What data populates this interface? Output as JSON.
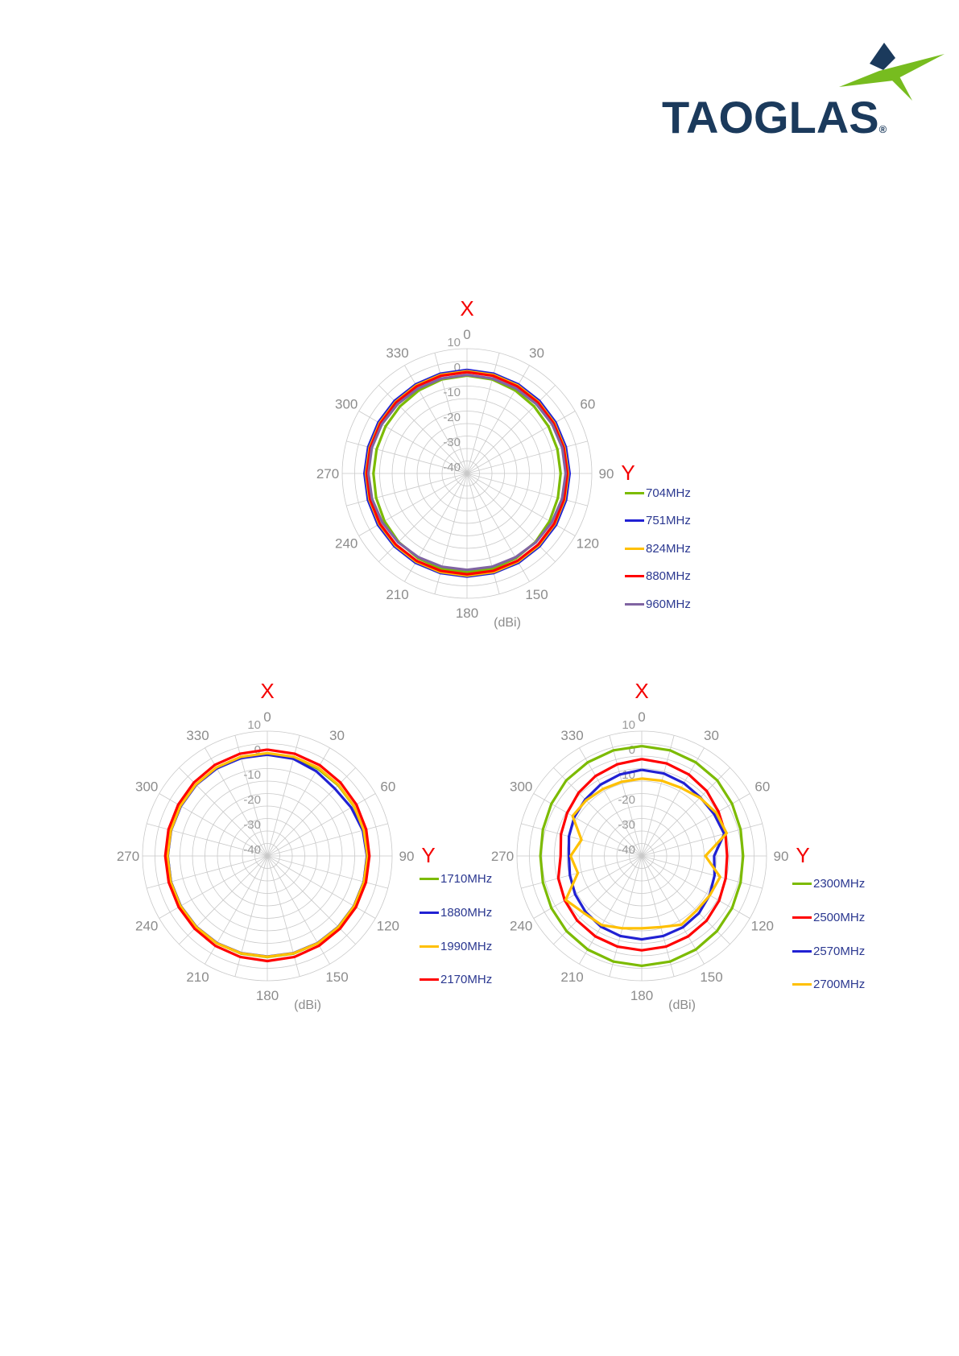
{
  "logo": {
    "wordmark": "TAOGLAS",
    "registered": "®",
    "navy": "#1b3a5c",
    "green": "#77bc1f"
  },
  "colors": {
    "axis_title_red": "#f40000",
    "angle_label_gray": "#8c8c8c",
    "radial_label_gray": "#9a9a9a",
    "grid_gray": "#c9c9c9",
    "legend_text_navy": "#2b3890"
  },
  "chart_data": [
    {
      "type": "line",
      "projection": "polar",
      "title_top": "X",
      "title_right": "Y",
      "unit_label": "(dBi)",
      "angle_step_deg": 15,
      "angle_tick_labels": [
        "0",
        "30",
        "60",
        "90",
        "120",
        "150",
        "180",
        "210",
        "240",
        "270",
        "300",
        "330"
      ],
      "radial_ticks": [
        10,
        0,
        -10,
        -20,
        -30,
        -40
      ],
      "radial_range": [
        -40,
        10
      ],
      "grid_step_db": 5,
      "legend_position": "right",
      "angles_deg": [
        0,
        15,
        30,
        45,
        60,
        75,
        90,
        105,
        120,
        135,
        150,
        165,
        180,
        195,
        210,
        225,
        240,
        255,
        270,
        285,
        300,
        315,
        330,
        345
      ],
      "series": [
        {
          "name": "704MHz",
          "color": "#7cbb00",
          "values": [
            -0.8,
            -1.0,
            -1.5,
            -2.0,
            -2.3,
            -2.5,
            -2.5,
            -2.3,
            -1.8,
            -1.2,
            -0.8,
            -0.5,
            -0.4,
            -0.5,
            -0.8,
            -1.2,
            -1.8,
            -2.3,
            -2.5,
            -2.5,
            -2.3,
            -2.0,
            -1.5,
            -1.0
          ]
        },
        {
          "name": "751MHz",
          "color": "#2121d3",
          "values": [
            1.5,
            1.4,
            1.2,
            1.1,
            1.0,
            1.0,
            1.1,
            1.1,
            1.2,
            1.2,
            1.3,
            1.3,
            1.3,
            1.3,
            1.3,
            1.2,
            1.2,
            1.1,
            1.1,
            1.0,
            1.0,
            1.1,
            1.2,
            1.4
          ]
        },
        {
          "name": "824MHz",
          "color": "#ffc000",
          "values": [
            1.0,
            0.9,
            0.7,
            0.5,
            0.4,
            0.4,
            0.5,
            0.5,
            0.6,
            0.7,
            0.8,
            0.9,
            0.9,
            0.9,
            0.8,
            0.7,
            0.6,
            0.5,
            0.5,
            0.4,
            0.4,
            0.5,
            0.7,
            0.9
          ]
        },
        {
          "name": "880MHz",
          "color": "#ff0000",
          "values": [
            0.6,
            0.5,
            0.3,
            0.2,
            0.1,
            0.1,
            0.2,
            0.2,
            0.3,
            0.3,
            0.4,
            0.4,
            0.4,
            0.4,
            0.4,
            0.3,
            0.3,
            0.2,
            0.2,
            0.1,
            0.1,
            0.2,
            0.3,
            0.5
          ]
        },
        {
          "name": "960MHz",
          "color": "#8064a2",
          "values": [
            -0.5,
            -0.6,
            -0.7,
            -0.7,
            -0.6,
            -0.5,
            -0.5,
            -0.6,
            -0.8,
            -1.0,
            -1.2,
            -1.3,
            -1.4,
            -1.3,
            -1.2,
            -1.0,
            -0.8,
            -0.6,
            -0.5,
            -0.5,
            -0.6,
            -0.7,
            -0.7,
            -0.6
          ]
        }
      ]
    },
    {
      "type": "line",
      "projection": "polar",
      "title_top": "X",
      "title_right": "Y",
      "unit_label": "(dBi)",
      "angle_step_deg": 15,
      "angle_tick_labels": [
        "0",
        "30",
        "60",
        "90",
        "120",
        "150",
        "180",
        "210",
        "240",
        "270",
        "300",
        "330"
      ],
      "radial_ticks": [
        10,
        0,
        -10,
        -20,
        -30,
        -40
      ],
      "radial_range": [
        -40,
        10
      ],
      "grid_step_db": 5,
      "legend_position": "right",
      "angles_deg": [
        0,
        15,
        30,
        45,
        60,
        75,
        90,
        105,
        120,
        135,
        150,
        165,
        180,
        195,
        210,
        225,
        240,
        255,
        270,
        285,
        300,
        315,
        330,
        345
      ],
      "series": [
        {
          "name": "1710MHz",
          "color": "#7cbb00",
          "values": [
            1.0,
            0.8,
            0.4,
            0.1,
            0.0,
            -0.1,
            0.0,
            0.0,
            0.1,
            0.2,
            0.4,
            0.5,
            0.5,
            0.5,
            0.4,
            0.2,
            0.1,
            0.0,
            -0.1,
            0.0,
            0.1,
            0.4,
            0.8,
            1.0
          ]
        },
        {
          "name": "1880MHz",
          "color": "#2121d3",
          "values": [
            0.6,
            0.3,
            -0.8,
            -1.8,
            -1.2,
            -0.4,
            -0.1,
            0.0,
            0.1,
            0.2,
            0.3,
            0.3,
            0.3,
            0.3,
            0.3,
            0.2,
            0.1,
            0.0,
            -0.1,
            -0.1,
            0.0,
            0.3,
            0.5,
            0.6
          ]
        },
        {
          "name": "1990MHz",
          "color": "#ffc000",
          "values": [
            1.2,
            1.1,
            0.8,
            0.3,
            0.1,
            0.0,
            0.1,
            0.1,
            0.2,
            0.3,
            0.4,
            0.4,
            0.4,
            0.4,
            0.4,
            0.3,
            0.2,
            0.1,
            0.0,
            0.0,
            0.2,
            0.5,
            0.9,
            1.1
          ]
        },
        {
          "name": "2170MHz",
          "color": "#ff0000",
          "values": [
            2.6,
            2.4,
            2.0,
            1.5,
            1.2,
            1.0,
            0.9,
            0.9,
            1.0,
            1.2,
            1.5,
            1.9,
            2.1,
            1.9,
            1.6,
            1.2,
            1.0,
            0.9,
            0.9,
            1.0,
            1.2,
            1.6,
            2.1,
            2.4
          ]
        }
      ]
    },
    {
      "type": "line",
      "projection": "polar",
      "title_top": "X",
      "title_right": "Y",
      "unit_label": "(dBi)",
      "angle_step_deg": 15,
      "angle_tick_labels": [
        "0",
        "30",
        "60",
        "90",
        "120",
        "150",
        "180",
        "210",
        "240",
        "270",
        "300",
        "330"
      ],
      "radial_ticks": [
        10,
        0,
        -10,
        -20,
        -30,
        -40
      ],
      "radial_range": [
        -40,
        10
      ],
      "grid_step_db": 5,
      "legend_position": "right",
      "angles_deg": [
        0,
        15,
        30,
        45,
        60,
        75,
        90,
        105,
        120,
        135,
        150,
        165,
        180,
        195,
        210,
        225,
        240,
        255,
        270,
        285,
        300,
        315,
        330,
        345
      ],
      "series": [
        {
          "name": "2300MHz",
          "color": "#7cbb00",
          "values": [
            4.0,
            3.8,
            3.3,
            2.8,
            1.8,
            1.0,
            0.6,
            1.0,
            1.8,
            2.6,
            3.3,
            3.8,
            4.0,
            3.8,
            3.3,
            2.6,
            1.8,
            1.0,
            0.6,
            1.0,
            1.8,
            2.8,
            3.3,
            3.8
          ]
        },
        {
          "name": "2500MHz",
          "color": "#ff0000",
          "values": [
            -1.2,
            -1.6,
            -2.3,
            -3.2,
            -4.5,
            -5.3,
            -5.8,
            -5.2,
            -4.2,
            -3.3,
            -2.8,
            -2.4,
            -2.2,
            -2.4,
            -2.8,
            -3.4,
            -4.4,
            -5.4,
            -7.5,
            -6.5,
            -5.5,
            -4.2,
            -3.0,
            -2.0
          ]
        },
        {
          "name": "2570MHz",
          "color": "#2121d3",
          "values": [
            -5.5,
            -5.8,
            -6.3,
            -6.8,
            -6.5,
            -5.8,
            -11.0,
            -9.8,
            -8.6,
            -7.6,
            -7.0,
            -6.8,
            -6.6,
            -6.8,
            -7.3,
            -8.2,
            -9.2,
            -10.2,
            -10.8,
            -9.8,
            -8.8,
            -8.0,
            -7.0,
            -6.2
          ]
        },
        {
          "name": "2700MHz",
          "color": "#ffc000",
          "values": [
            -9.0,
            -8.8,
            -8.5,
            -7.0,
            -5.5,
            -4.8,
            -14.5,
            -7.5,
            -8.5,
            -9.0,
            -8.2,
            -10.5,
            -11.0,
            -10.0,
            -8.0,
            -7.5,
            -4.8,
            -13.5,
            -11.5,
            -15.0,
            -8.0,
            -8.5,
            -9.0,
            -9.2
          ]
        }
      ]
    }
  ]
}
